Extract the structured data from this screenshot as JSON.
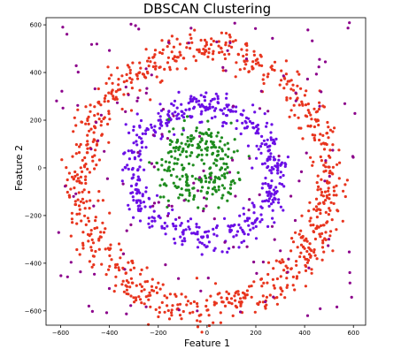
{
  "chart_data": {
    "type": "scatter",
    "title": "DBSCAN Clustering",
    "xlabel": "Feature 1",
    "ylabel": "Feature 2",
    "xlim": [
      -660,
      650
    ],
    "ylim": [
      -660,
      630
    ],
    "xticks": [
      -600,
      -400,
      -200,
      0,
      200,
      400,
      600
    ],
    "xtick_labels": [
      "−600",
      "−400",
      "−200",
      "0",
      "200",
      "400",
      "600"
    ],
    "yticks": [
      -600,
      -400,
      -200,
      0,
      200,
      400,
      600
    ],
    "ytick_labels": [
      "−600",
      "−400",
      "−200",
      "0",
      "200",
      "400",
      "600"
    ],
    "grid": false,
    "legend": "none",
    "clusters": [
      {
        "color": "#e8351e",
        "shape": "ring",
        "center": [
          -10,
          -45
        ],
        "radius": [
          505,
          540
        ],
        "spread": 38,
        "count": 850
      },
      {
        "color": "#6b0fe6",
        "shape": "ring",
        "center": [
          -10,
          -20
        ],
        "radius": [
          290,
          270
        ],
        "spread": 30,
        "count": 500
      },
      {
        "color": "#1e8c1e",
        "shape": "ring",
        "center": [
          -30,
          10
        ],
        "radius": [
          105,
          110
        ],
        "spread": 40,
        "count": 260
      },
      {
        "color": "#8b008b",
        "shape": "noise",
        "count": 160,
        "xrange": [
          -620,
          610
        ],
        "yrange": [
          -620,
          610
        ]
      }
    ]
  }
}
